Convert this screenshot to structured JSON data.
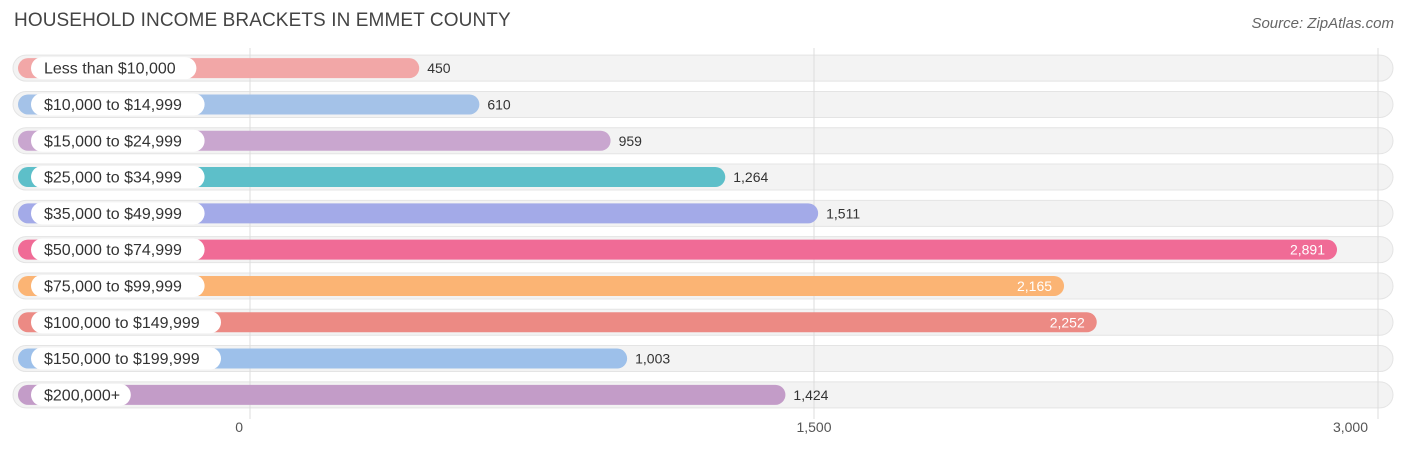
{
  "header": {
    "title": "HOUSEHOLD INCOME BRACKETS IN EMMET COUNTY",
    "source": "Source: ZipAtlas.com"
  },
  "chart_data": {
    "type": "bar",
    "orientation": "horizontal",
    "title": "HOUSEHOLD INCOME BRACKETS IN EMMET COUNTY",
    "categories": [
      "Less than $10,000",
      "$10,000 to $14,999",
      "$15,000 to $24,999",
      "$25,000 to $34,999",
      "$35,000 to $49,999",
      "$50,000 to $74,999",
      "$75,000 to $99,999",
      "$100,000 to $149,999",
      "$150,000 to $199,999",
      "$200,000+"
    ],
    "values": [
      450,
      610,
      959,
      1264,
      1511,
      2891,
      2165,
      2252,
      1003,
      1424
    ],
    "value_labels": [
      "450",
      "610",
      "959",
      "1,264",
      "1,511",
      "2,891",
      "2,165",
      "2,252",
      "1,003",
      "1,424"
    ],
    "colors": [
      "#f2a7a7",
      "#a4c2e8",
      "#c9a6cf",
      "#5dbfc9",
      "#a3aae8",
      "#f06b96",
      "#fbb474",
      "#ec8a84",
      "#9dc0ea",
      "#c39cc8"
    ],
    "xlim": [
      0,
      3000
    ],
    "xticks": [
      0,
      1500,
      3000
    ],
    "xtick_labels": [
      "0",
      "1,500",
      "3,000"
    ],
    "grid": true,
    "legend": "none"
  }
}
